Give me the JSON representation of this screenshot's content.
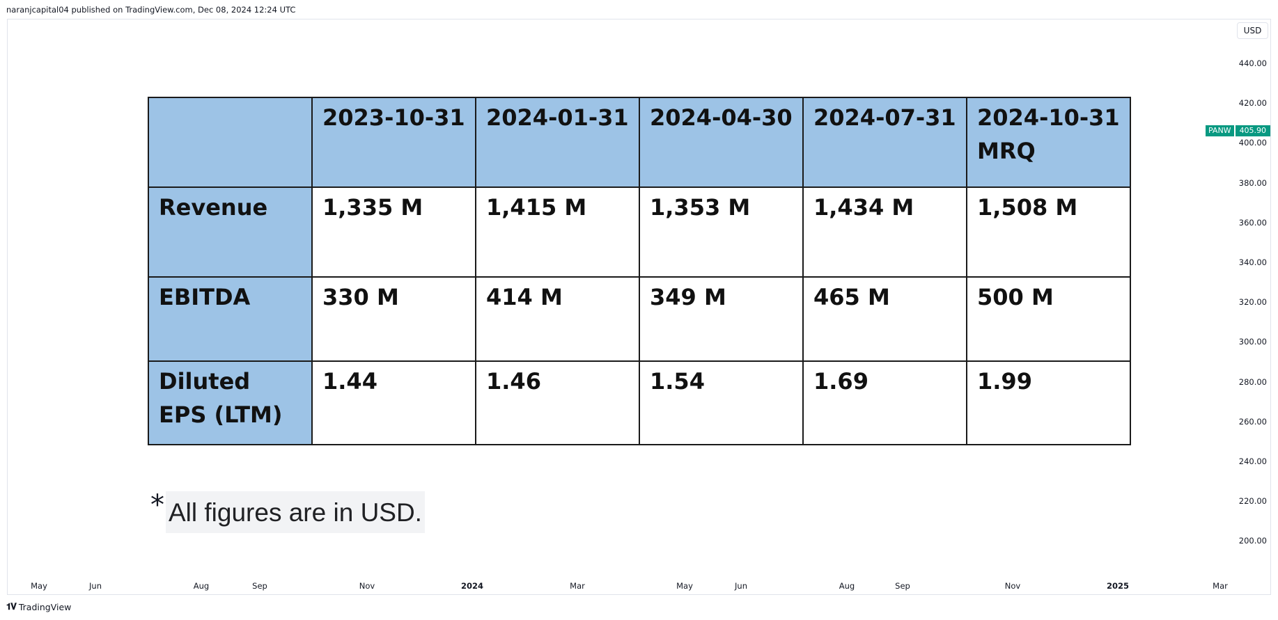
{
  "header": {
    "publisher_line": "naranjcapital04 published on TradingView.com, Dec 08, 2024 12:24 UTC"
  },
  "currency_button": "USD",
  "price_axis": [
    "440.00",
    "420.00",
    "400.00",
    "380.00",
    "360.00",
    "340.00",
    "320.00",
    "300.00",
    "280.00",
    "260.00",
    "240.00",
    "220.00",
    "200.00"
  ],
  "last_price": {
    "symbol": "PANW",
    "value": "405.90",
    "color": "#089981"
  },
  "time_axis": [
    "May",
    "Jun",
    "Aug",
    "Sep",
    "Nov",
    "2024",
    "Mar",
    "May",
    "Jun",
    "Aug",
    "Sep",
    "Nov",
    "2025",
    "Mar"
  ],
  "footer": {
    "logo": "TradingView"
  },
  "chart_data": {
    "type": "table",
    "columns": [
      "",
      "2023-10-31",
      "2024-01-31",
      "2024-04-30",
      "2024-07-31",
      "2024-10-31\nMRQ"
    ],
    "rows": [
      {
        "label": "Revenue",
        "values": [
          "1,335 M",
          "1,415 M",
          "1,353 M",
          "1,434 M",
          "1,508 M"
        ]
      },
      {
        "label": "EBITDA",
        "values": [
          "330 M",
          "414 M",
          "349 M",
          "465 M",
          "500 M"
        ]
      },
      {
        "label": "Diluted EPS (LTM)",
        "values": [
          "1.44",
          "1.46",
          "1.54",
          "1.69",
          "1.99"
        ]
      }
    ],
    "header_color": "#9dc3e6",
    "footnote_star": "*",
    "footnote": "All figures are in USD."
  }
}
